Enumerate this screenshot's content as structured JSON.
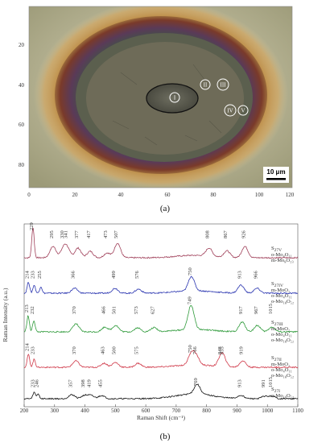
{
  "panel_a": {
    "label": "(a)",
    "scale_bar": "10 μm",
    "x_ticks": [
      "0",
      "20",
      "40",
      "60",
      "80",
      "100",
      "120"
    ],
    "y_ticks": [
      "20",
      "40",
      "60",
      "80"
    ],
    "points": [
      "I",
      "II",
      "III",
      "IV",
      "V"
    ]
  },
  "panel_b": {
    "label": "(b)",
    "chart_data": {
      "type": "line",
      "xlabel": "Raman Shift (cm⁻¹)",
      "ylabel": "Raman Intensity (a.u.)",
      "xlim": [
        200,
        1100
      ],
      "x_ticks": [
        "200",
        "300",
        "400",
        "500",
        "600",
        "700",
        "800",
        "900",
        "1000",
        "1100"
      ],
      "series": [
        {
          "name": "S27V",
          "sample_main": "S",
          "sample_sub": "27V",
          "color": "#a0405a",
          "phases": [
            "o-Mo₄O₁₁",
            "m-Mo₈O₂₃"
          ],
          "peaks": [
            "229",
            "295",
            "330",
            "341",
            "377",
            "417",
            "473",
            "507",
            "808",
            "867",
            "926"
          ],
          "peak_x": [
            229,
            295,
            330,
            341,
            377,
            417,
            473,
            507,
            808,
            867,
            926
          ]
        },
        {
          "name": "S27IV",
          "sample_main": "S",
          "sample_sub": "27IV",
          "color": "#2a35b0",
          "phases": [
            "m-MoO₂",
            "o-Mo₄O₁₁",
            "o-Mo₁₈O₅₂"
          ],
          "peaks": [
            "214",
            "233",
            "255",
            "366",
            "499",
            "576",
            "750",
            "913",
            "966"
          ],
          "peak_x": [
            214,
            233,
            255,
            366,
            499,
            576,
            750,
            913,
            966
          ]
        },
        {
          "name": "S27III",
          "sample_main": "S",
          "sample_sub": "27III",
          "color": "#2e9a3a",
          "phases": [
            "m-MoO₂",
            "o-Mo₄O₁₁",
            "o-Mo₁₈O₅₂"
          ],
          "peaks": [
            "213",
            "232",
            "370",
            "466",
            "501",
            "573",
            "627",
            "749",
            "917",
            "967",
            "1015"
          ],
          "peak_x": [
            213,
            232,
            370,
            466,
            501,
            573,
            627,
            749,
            917,
            967,
            1015
          ]
        },
        {
          "name": "S27II",
          "sample_main": "S",
          "sample_sub": "27II",
          "color": "#d03a4a",
          "phases": [
            "m-MoO₂",
            "o-Mo₄O₁₁",
            "o-Mo₁₈O₅₂"
          ],
          "peaks": [
            "214",
            "233",
            "370",
            "463",
            "500",
            "575",
            "750",
            "766",
            "848",
            "855",
            "919"
          ],
          "peak_x": [
            214,
            233,
            370,
            463,
            500,
            575,
            750,
            766,
            848,
            855,
            919
          ]
        },
        {
          "name": "S27I",
          "sample_main": "S",
          "sample_sub": "27I",
          "color": "#111111",
          "phases": [
            "o-Mo₁₈O₅₂"
          ],
          "peaks": [
            "233",
            "246",
            "357",
            "398",
            "419",
            "455",
            "769",
            "913",
            "991",
            "1015"
          ],
          "peak_x": [
            233,
            246,
            357,
            398,
            419,
            455,
            769,
            913,
            991,
            1015
          ]
        }
      ]
    }
  }
}
